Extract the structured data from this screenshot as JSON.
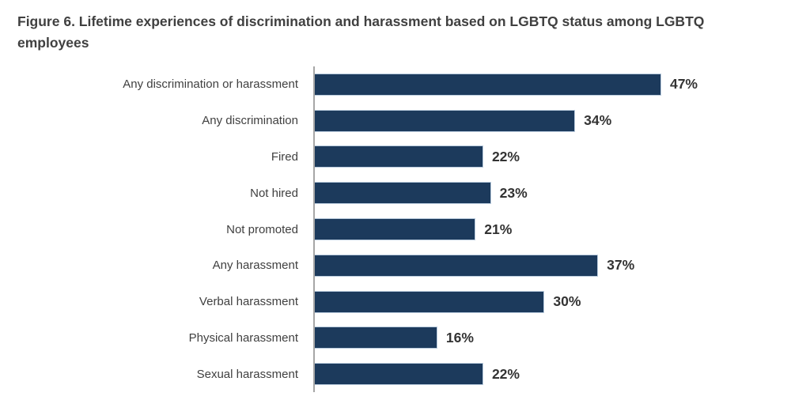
{
  "figure": {
    "title": "Figure 6. Lifetime experiences of discrimination and harassment based on LGBTQ status among LGBTQ employees"
  },
  "chart_data": {
    "type": "bar",
    "orientation": "horizontal",
    "title": "Figure 6. Lifetime experiences of discrimination and harassment based on LGBTQ status among LGBTQ employees",
    "categories": [
      "Any discrimination or harassment",
      "Any discrimination",
      "Fired",
      "Not hired",
      "Not promoted",
      "Any harassment",
      "Verbal harassment",
      "Physical harassment",
      "Sexual harassment"
    ],
    "values": [
      47,
      34,
      22,
      23,
      21,
      37,
      30,
      16,
      22
    ],
    "value_labels": [
      "47%",
      "34%",
      "22%",
      "23%",
      "21%",
      "37%",
      "30%",
      "16%",
      "22%"
    ],
    "xlabel": "",
    "ylabel": "",
    "xlim": [
      0,
      50
    ],
    "grid": false,
    "legend": false,
    "bar_color": "#1c3a5c",
    "bar_border_color": "#b9cbdd",
    "axis_line_color": "#a6a6a6",
    "label_color": "#404040",
    "value_label_color": "#333333",
    "title_color": "#404040"
  }
}
